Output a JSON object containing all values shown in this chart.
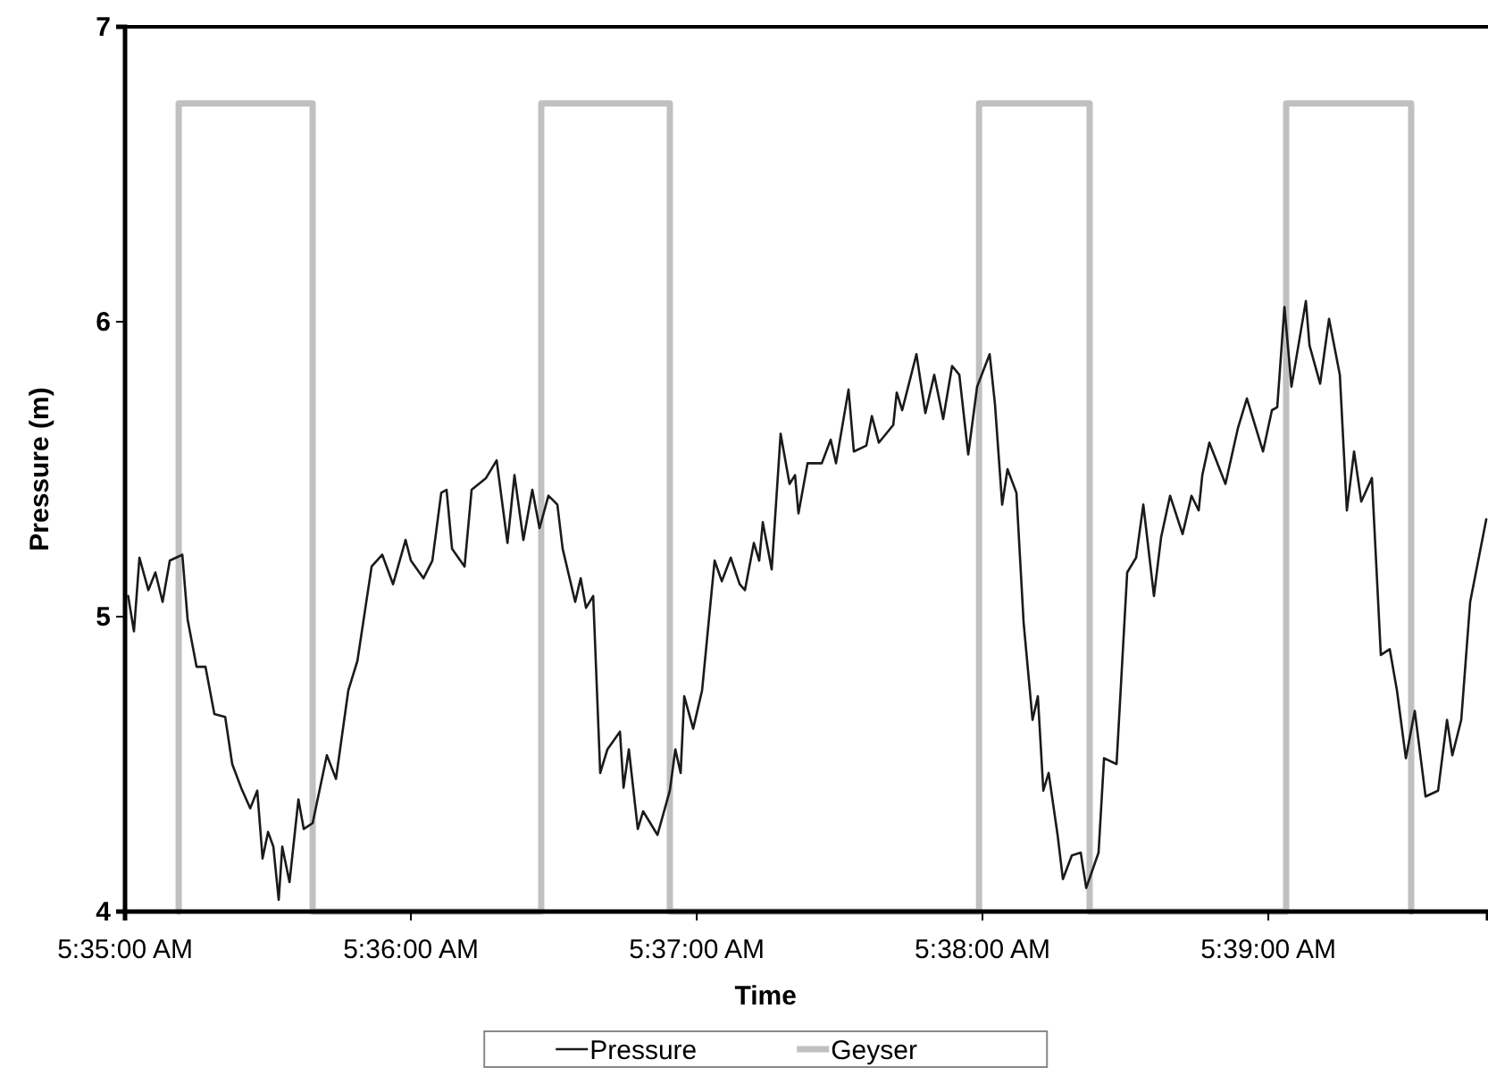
{
  "chart_data": {
    "type": "line",
    "xlabel": "Time",
    "ylabel": "Pressure (m)",
    "xlim": [
      5.58333,
      5.66281
    ],
    "ylim": [
      4,
      7
    ],
    "xticks": [
      {
        "value": 5.58333,
        "label": "5:35:00 AM"
      },
      {
        "value": 5.6,
        "label": "5:36:00 AM"
      },
      {
        "value": 5.61667,
        "label": "5:37:00 AM"
      },
      {
        "value": 5.63333,
        "label": "5:38:00 AM"
      },
      {
        "value": 5.65,
        "label": "5:39:00 AM"
      }
    ],
    "yticks": [
      4,
      5,
      6,
      7
    ],
    "grid": false,
    "legend": "bottom",
    "marker": "none",
    "line_style": "solid",
    "series": [
      {
        "name": "Pressure",
        "color": "#1a1a1a",
        "x": [
          5.58351,
          5.58385,
          5.58417,
          5.58469,
          5.5851,
          5.58552,
          5.58594,
          5.58667,
          5.58698,
          5.5875,
          5.58802,
          5.58854,
          5.58917,
          5.58958,
          5.5901,
          5.59063,
          5.59104,
          5.59135,
          5.59167,
          5.59198,
          5.59229,
          5.5925,
          5.59292,
          5.59344,
          5.59375,
          5.59427,
          5.5951,
          5.59563,
          5.59635,
          5.59688,
          5.59771,
          5.59833,
          5.59896,
          5.59969,
          5.6,
          5.60073,
          5.60125,
          5.60177,
          5.60208,
          5.6024,
          5.60313,
          5.60354,
          5.60438,
          5.605,
          5.60563,
          5.60604,
          5.60656,
          5.60708,
          5.6075,
          5.60802,
          5.60854,
          5.60885,
          5.60958,
          5.6099,
          5.61021,
          5.61063,
          5.61104,
          5.61146,
          5.61219,
          5.6124,
          5.61271,
          5.61323,
          5.61354,
          5.61438,
          5.6151,
          5.61542,
          5.61573,
          5.61594,
          5.61646,
          5.61698,
          5.61771,
          5.61813,
          5.61865,
          5.61917,
          5.61948,
          5.62,
          5.62031,
          5.62052,
          5.62104,
          5.62156,
          5.62208,
          5.6224,
          5.6226,
          5.62313,
          5.62396,
          5.62448,
          5.62479,
          5.62552,
          5.62583,
          5.62656,
          5.62688,
          5.62729,
          5.62813,
          5.62833,
          5.62865,
          5.62948,
          5.63,
          5.63052,
          5.63104,
          5.63156,
          5.63198,
          5.6325,
          5.63302,
          5.63375,
          5.63406,
          5.63448,
          5.63479,
          5.63531,
          5.63573,
          5.63625,
          5.63656,
          5.63688,
          5.63719,
          5.63771,
          5.63802,
          5.63854,
          5.63906,
          5.63938,
          5.6401,
          5.64042,
          5.64115,
          5.64177,
          5.64229,
          5.64271,
          5.64333,
          5.64375,
          5.64427,
          5.645,
          5.64552,
          5.64594,
          5.64615,
          5.64656,
          5.6475,
          5.64823,
          5.64875,
          5.64969,
          5.65021,
          5.65052,
          5.65094,
          5.65135,
          5.65219,
          5.6524,
          5.65302,
          5.65354,
          5.65417,
          5.65458,
          5.655,
          5.65542,
          5.65604,
          5.65656,
          5.65708,
          5.6575,
          5.65802,
          5.65854,
          5.65917,
          5.6599,
          5.66042,
          5.66073,
          5.66125,
          5.66177,
          5.66271
        ],
        "values": [
          5.07,
          4.95,
          5.2,
          5.09,
          5.15,
          5.05,
          5.19,
          5.21,
          4.99,
          4.83,
          4.83,
          4.67,
          4.66,
          4.5,
          4.42,
          4.35,
          4.41,
          4.18,
          4.27,
          4.22,
          4.04,
          4.22,
          4.1,
          4.38,
          4.28,
          4.3,
          4.53,
          4.45,
          4.75,
          4.85,
          5.17,
          5.21,
          5.11,
          5.26,
          5.19,
          5.13,
          5.19,
          5.42,
          5.43,
          5.23,
          5.17,
          5.43,
          5.47,
          5.53,
          5.25,
          5.48,
          5.26,
          5.43,
          5.3,
          5.41,
          5.38,
          5.23,
          5.05,
          5.13,
          5.03,
          5.07,
          4.47,
          4.55,
          4.61,
          4.42,
          4.55,
          4.28,
          4.34,
          4.26,
          4.41,
          4.55,
          4.47,
          4.73,
          4.62,
          4.75,
          5.19,
          5.12,
          5.2,
          5.11,
          5.09,
          5.25,
          5.19,
          5.32,
          5.16,
          5.62,
          5.45,
          5.48,
          5.35,
          5.52,
          5.52,
          5.6,
          5.52,
          5.77,
          5.56,
          5.58,
          5.68,
          5.59,
          5.65,
          5.76,
          5.7,
          5.89,
          5.69,
          5.82,
          5.67,
          5.85,
          5.82,
          5.55,
          5.78,
          5.89,
          5.72,
          5.38,
          5.5,
          5.42,
          4.98,
          4.65,
          4.73,
          4.41,
          4.47,
          4.26,
          4.11,
          4.19,
          4.2,
          4.08,
          4.2,
          4.52,
          4.5,
          5.15,
          5.2,
          5.38,
          5.07,
          5.27,
          5.41,
          5.28,
          5.41,
          5.36,
          5.48,
          5.59,
          5.45,
          5.64,
          5.74,
          5.56,
          5.7,
          5.71,
          6.05,
          5.78,
          6.07,
          5.92,
          5.79,
          6.01,
          5.82,
          5.36,
          5.56,
          5.39,
          5.47,
          4.87,
          4.89,
          4.75,
          4.52,
          4.68,
          4.39,
          4.41,
          4.65,
          4.53,
          4.65,
          5.05,
          5.33
        ]
      },
      {
        "name": "Geyser",
        "color": "#c0c0c0",
        "x": [
          5.58646,
          5.58646,
          5.59427,
          5.59427,
          5.6076,
          5.6076,
          5.6151,
          5.6151,
          5.63313,
          5.63313,
          5.63958,
          5.63958,
          5.65104,
          5.65104,
          5.65833,
          5.65833
        ],
        "values": [
          4,
          6.74,
          6.74,
          4,
          4,
          6.74,
          6.74,
          4,
          4,
          6.74,
          6.74,
          4,
          4,
          6.74,
          6.74,
          4
        ]
      }
    ]
  }
}
